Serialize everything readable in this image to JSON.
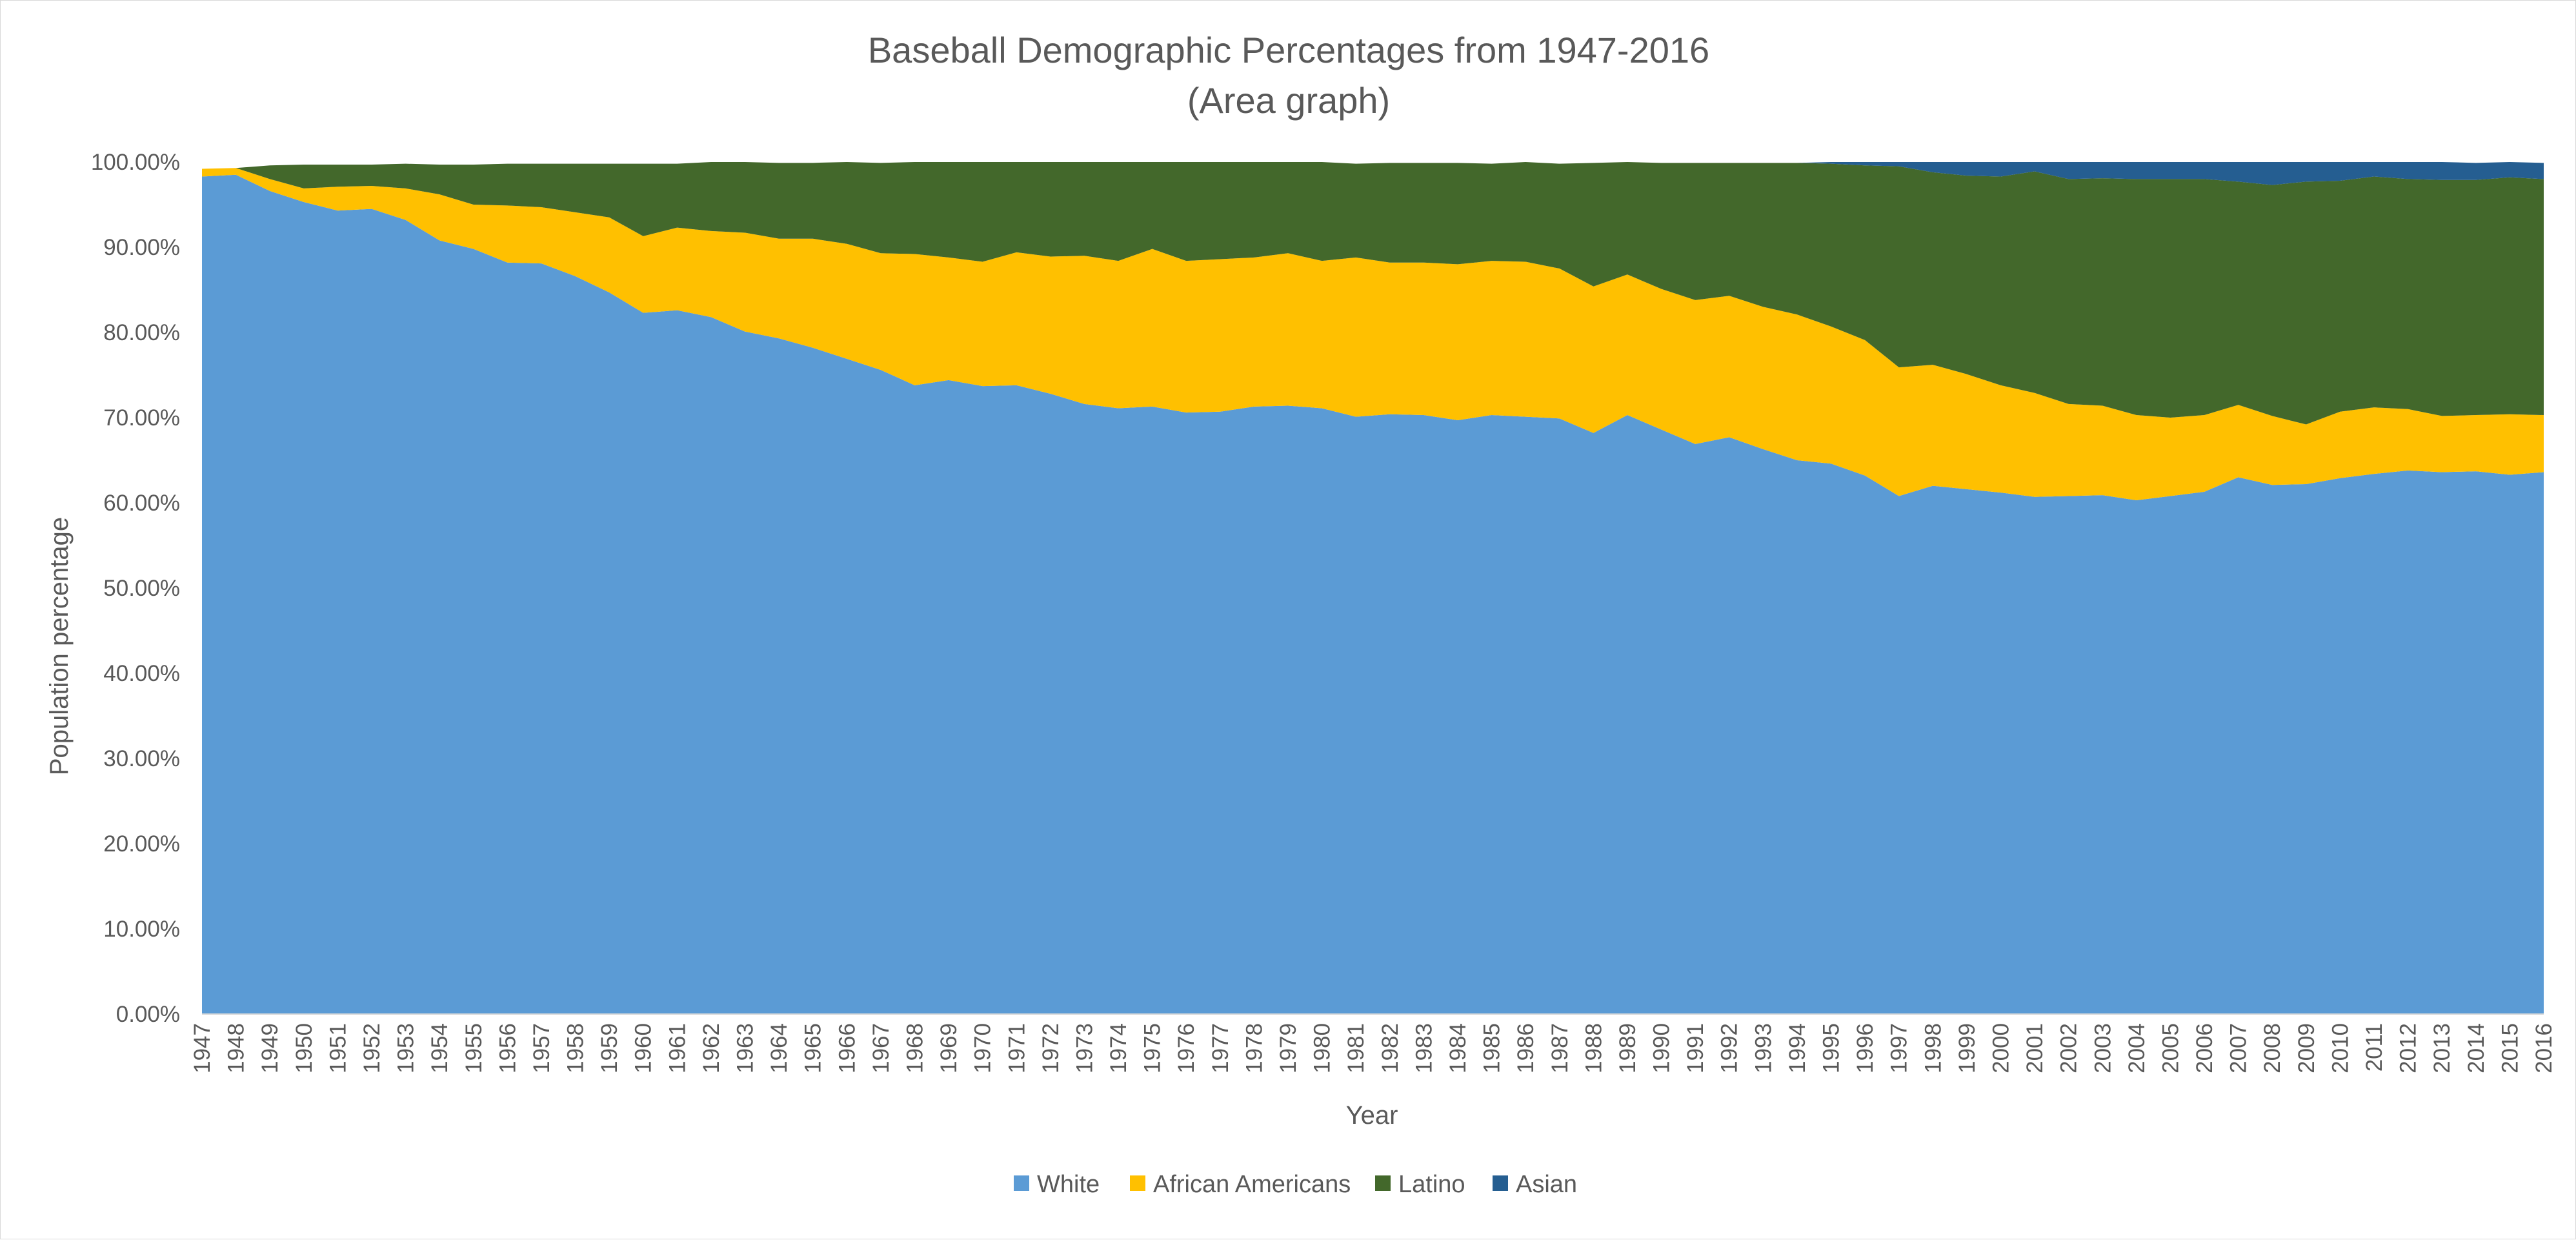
{
  "chart_data": {
    "type": "area",
    "stacked": true,
    "title": "Baseball Demographic Percentages from 1947-2016",
    "subtitle": "(Area graph)",
    "xlabel": "Year",
    "ylabel": "Population percentage",
    "ylim": [
      0,
      100
    ],
    "yticks": [
      "0.00%",
      "10.00%",
      "20.00%",
      "30.00%",
      "40.00%",
      "50.00%",
      "60.00%",
      "70.00%",
      "80.00%",
      "90.00%",
      "100.00%"
    ],
    "grid": false,
    "legend_position": "bottom",
    "x": [
      "1947",
      "1948",
      "1949",
      "1950",
      "1951",
      "1952",
      "1953",
      "1954",
      "1955",
      "1956",
      "1957",
      "1958",
      "1959",
      "1960",
      "1961",
      "1962",
      "1963",
      "1964",
      "1965",
      "1966",
      "1967",
      "1968",
      "1969",
      "1970",
      "1971",
      "1972",
      "1973",
      "1974",
      "1975",
      "1976",
      "1977",
      "1978",
      "1979",
      "1980",
      "1981",
      "1982",
      "1983",
      "1984",
      "1985",
      "1986",
      "1987",
      "1988",
      "1989",
      "1990",
      "1991",
      "1992",
      "1993",
      "1994",
      "1995",
      "1996",
      "1997",
      "1998",
      "1999",
      "2000",
      "2001",
      "2002",
      "2003",
      "2004",
      "2005",
      "2006",
      "2007",
      "2008",
      "2009",
      "2010",
      "2011",
      "2012",
      "2013",
      "2014",
      "2015",
      "2016"
    ],
    "series": [
      {
        "name": "White",
        "color": "#5b9bd5",
        "values": [
          98.3,
          98.5,
          96.6,
          95.3,
          94.3,
          94.5,
          93.2,
          90.8,
          89.8,
          88.2,
          88.1,
          86.6,
          84.7,
          82.3,
          82.6,
          81.8,
          80.1,
          79.3,
          78.2,
          76.9,
          75.6,
          73.8,
          74.4,
          73.7,
          73.8,
          72.8,
          71.6,
          71.1,
          71.3,
          70.6,
          70.7,
          71.3,
          71.4,
          71.1,
          70.1,
          70.4,
          70.3,
          69.7,
          70.3,
          70.1,
          69.9,
          68.2,
          70.3,
          68.6,
          66.9,
          67.7,
          66.3,
          65.0,
          64.6,
          63.2,
          60.8,
          62.0,
          61.6,
          61.2,
          60.7,
          60.8,
          60.9,
          60.3,
          60.8,
          61.3,
          63.0,
          62.1,
          62.2,
          62.9,
          63.4,
          63.8,
          63.6,
          63.7,
          63.3,
          63.6
        ]
      },
      {
        "name": "African Americans",
        "color": "#ffc000",
        "values": [
          0.9,
          0.8,
          1.4,
          1.6,
          2.8,
          2.7,
          3.7,
          5.4,
          5.2,
          6.7,
          6.6,
          7.5,
          8.8,
          9.0,
          9.7,
          10.1,
          11.6,
          11.7,
          12.8,
          13.5,
          13.7,
          15.4,
          14.4,
          14.6,
          15.6,
          16.1,
          17.4,
          17.3,
          18.5,
          17.8,
          17.9,
          17.5,
          17.9,
          17.3,
          18.7,
          17.8,
          17.9,
          18.3,
          18.1,
          18.2,
          17.6,
          17.2,
          16.5,
          16.5,
          16.9,
          16.6,
          16.7,
          17.1,
          16.1,
          15.9,
          15.1,
          14.2,
          13.5,
          12.6,
          12.2,
          10.8,
          10.5,
          10.0,
          9.2,
          9.0,
          8.5,
          8.1,
          7.0,
          7.8,
          7.8,
          7.2,
          6.6,
          6.6,
          7.1,
          6.7
        ]
      },
      {
        "name": "Latino",
        "color": "#43682b",
        "values": [
          0.0,
          0.0,
          1.6,
          2.8,
          2.6,
          2.5,
          2.9,
          3.5,
          4.7,
          4.9,
          5.1,
          5.7,
          6.3,
          8.5,
          7.5,
          8.1,
          8.3,
          8.9,
          8.9,
          9.6,
          10.6,
          10.8,
          11.2,
          11.7,
          10.6,
          11.1,
          11.0,
          11.6,
          10.2,
          11.6,
          11.4,
          11.2,
          10.7,
          11.6,
          11.0,
          11.7,
          11.7,
          11.9,
          11.4,
          11.7,
          12.3,
          14.5,
          13.2,
          14.8,
          16.1,
          15.6,
          16.9,
          17.8,
          19.1,
          20.5,
          23.6,
          22.6,
          23.3,
          24.5,
          26.0,
          26.4,
          26.7,
          27.7,
          28.0,
          27.7,
          26.2,
          27.1,
          28.5,
          27.1,
          27.1,
          27.0,
          27.7,
          27.6,
          27.8,
          27.7
        ]
      },
      {
        "name": "Asian",
        "color": "#255e91",
        "values": [
          0.0,
          0.0,
          0.0,
          0.0,
          0.0,
          0.0,
          0.0,
          0.0,
          0.0,
          0.0,
          0.0,
          0.0,
          0.0,
          0.0,
          0.0,
          0.0,
          0.0,
          0.0,
          0.0,
          0.0,
          0.0,
          0.0,
          0.0,
          0.0,
          0.0,
          0.0,
          0.0,
          0.0,
          0.0,
          0.0,
          0.0,
          0.0,
          0.0,
          0.0,
          0.0,
          0.0,
          0.0,
          0.0,
          0.0,
          0.0,
          0.0,
          0.0,
          0.0,
          0.0,
          0.0,
          0.0,
          0.0,
          0.0,
          0.2,
          0.4,
          0.5,
          1.2,
          1.6,
          1.7,
          1.1,
          2.0,
          1.9,
          2.0,
          2.0,
          2.0,
          2.3,
          2.7,
          2.3,
          2.2,
          1.7,
          2.0,
          2.1,
          2.0,
          1.8,
          1.9
        ]
      }
    ]
  }
}
